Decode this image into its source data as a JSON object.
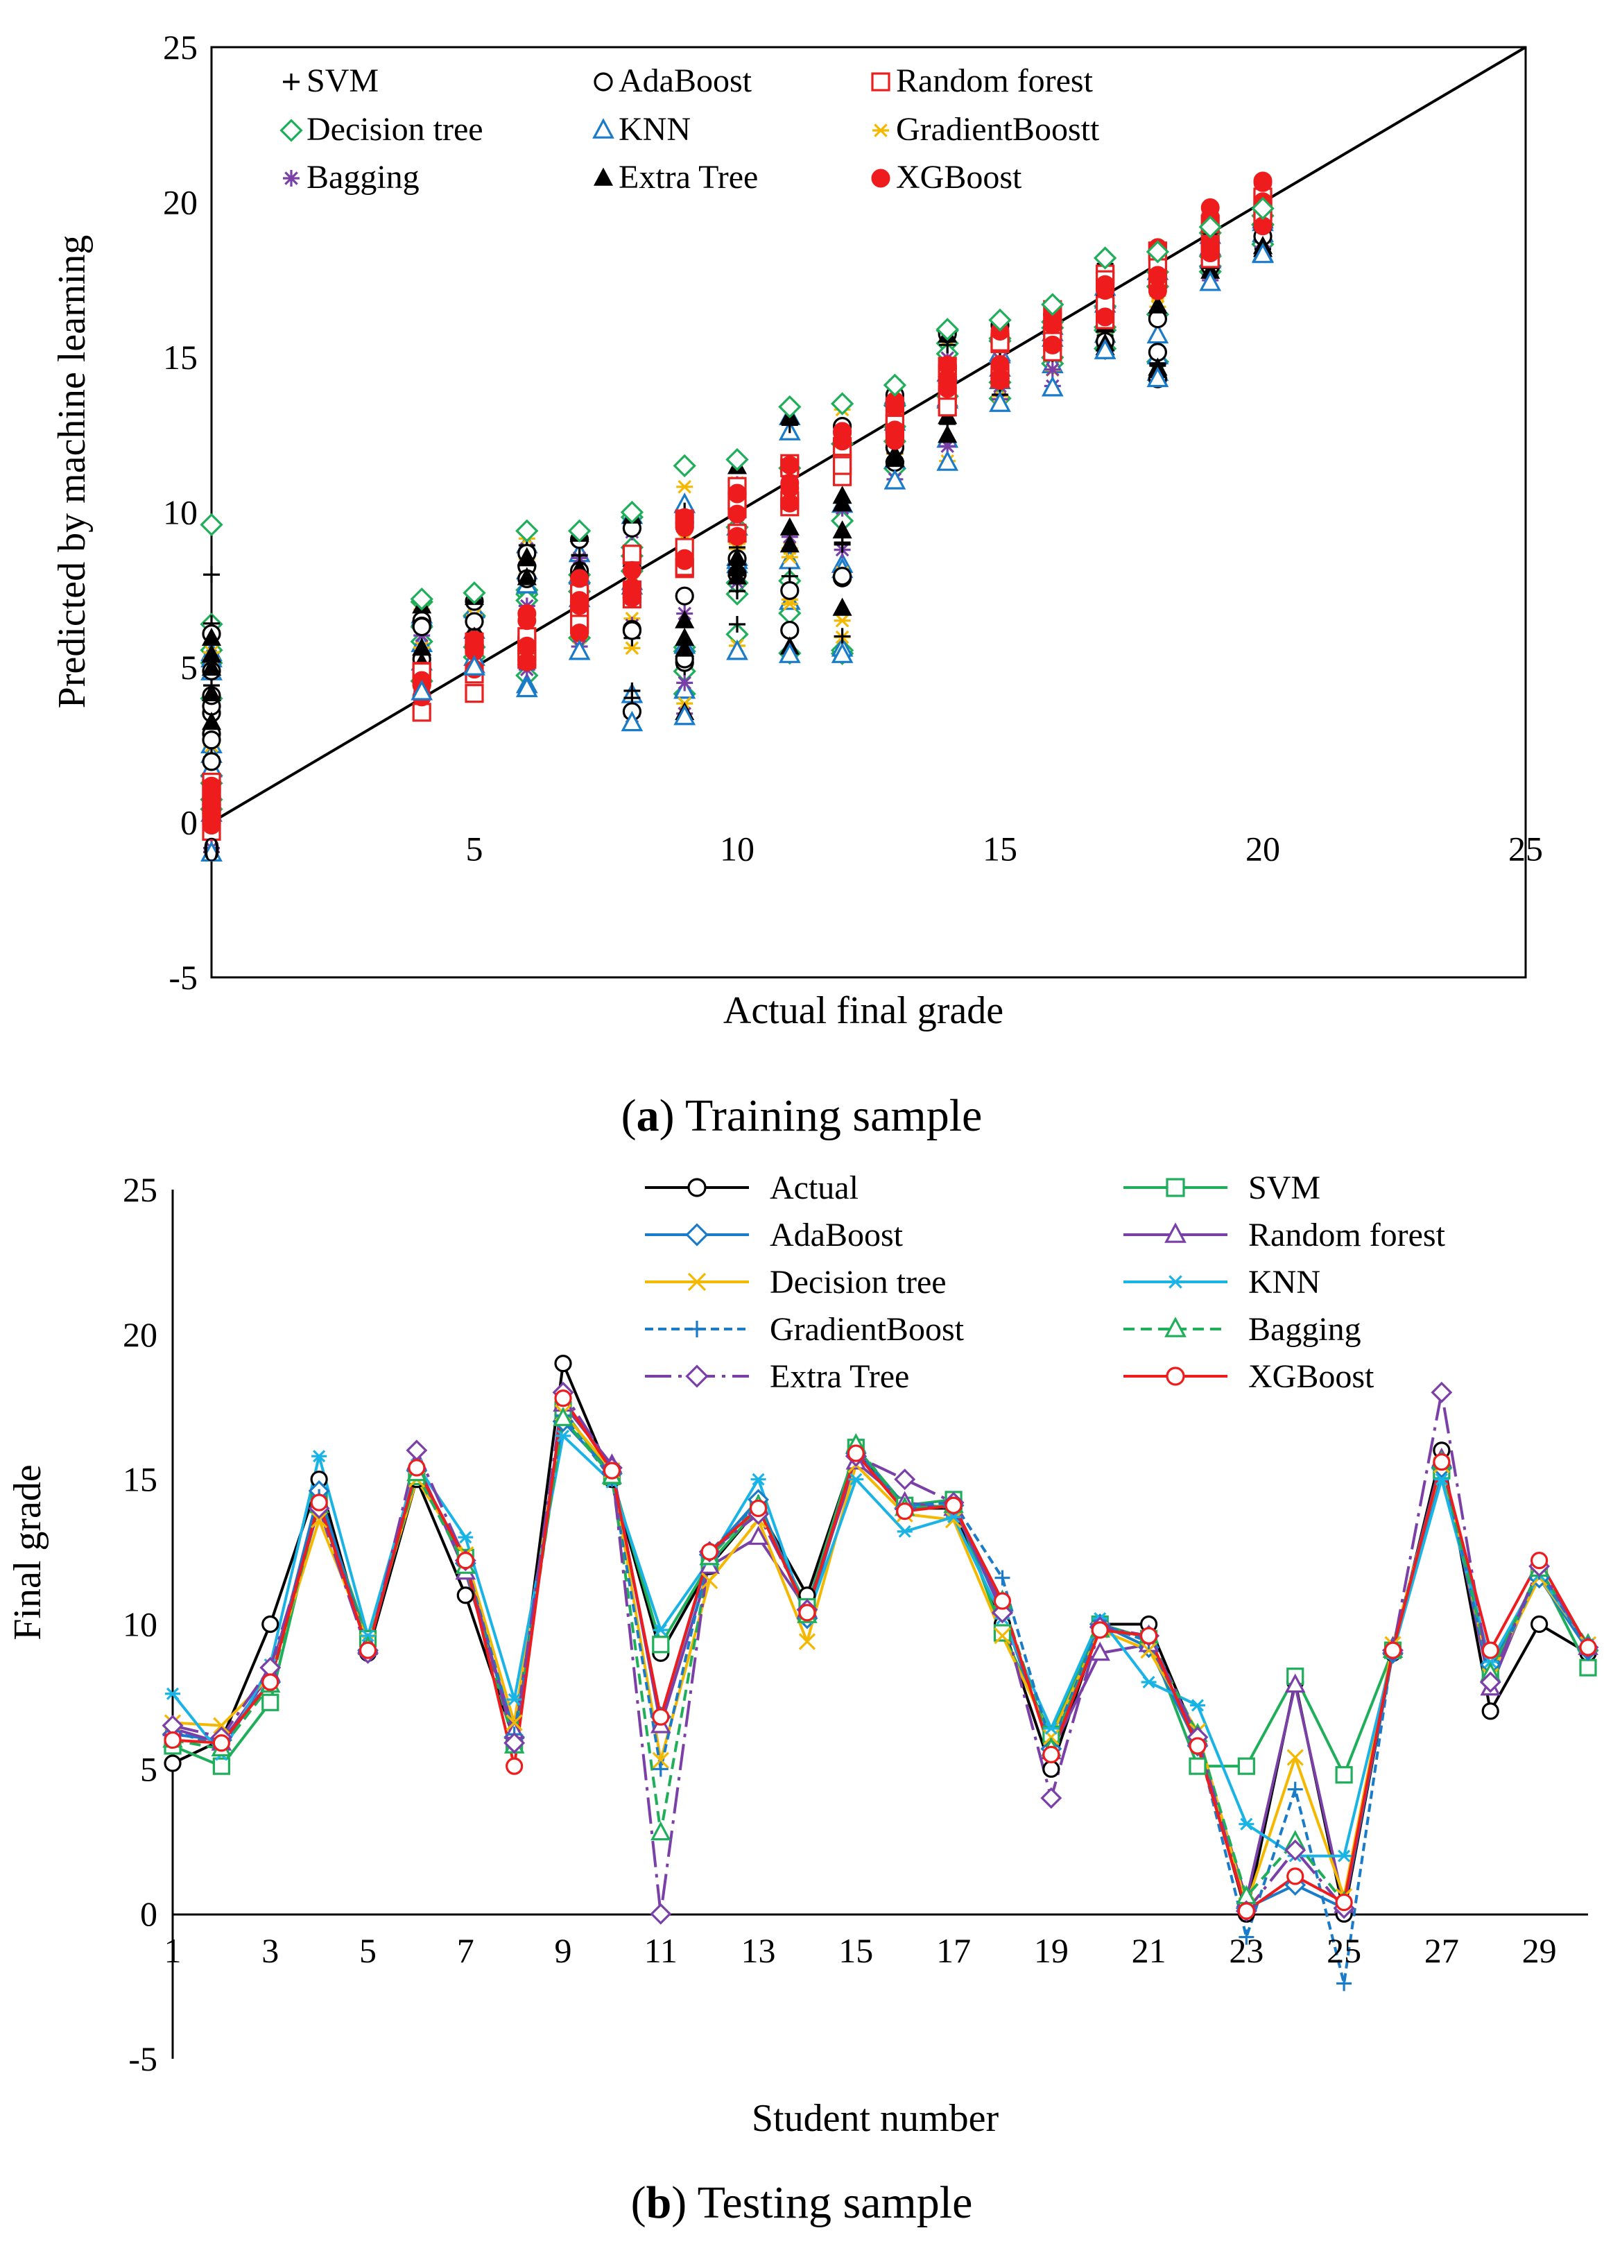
{
  "chart_data": [
    {
      "type": "scatter",
      "caption": {
        "letter": "a",
        "text": "Training sample"
      },
      "xlabel": "Actual final grade",
      "ylabel": "Predicted by machine learning",
      "xlim": [
        0,
        25
      ],
      "ylim": [
        -5,
        25
      ],
      "xticks": [
        "0",
        "5",
        "10",
        "15",
        "20",
        "25"
      ],
      "yticks": [
        "-5",
        "0",
        "5",
        "10",
        "15",
        "20",
        "25"
      ],
      "reference_line": {
        "from": [
          0,
          0
        ],
        "to": [
          25,
          25
        ]
      },
      "series": [
        {
          "name": "SVM",
          "marker": "plus",
          "color": "#000000"
        },
        {
          "name": "AdaBoost",
          "marker": "circle-open",
          "color": "#000000"
        },
        {
          "name": "Random forest",
          "marker": "square-open",
          "color": "#e8201f"
        },
        {
          "name": "Decision tree",
          "marker": "diamond-open",
          "color": "#1fae5a"
        },
        {
          "name": "KNN",
          "marker": "triangle-open",
          "color": "#1a7bc9"
        },
        {
          "name": "GradientBoostt",
          "marker": "asterisk",
          "color": "#f5b800"
        },
        {
          "name": "Bagging",
          "marker": "star",
          "color": "#7b3fa8"
        },
        {
          "name": "Extra Tree",
          "marker": "triangle-filled",
          "color": "#000000"
        },
        {
          "name": "XGBoost",
          "marker": "circle-filled",
          "color": "#ee1c1c"
        }
      ],
      "grade_groups": [
        {
          "x": 0,
          "ymin": -1,
          "ymax": 9.6
        },
        {
          "x": 4,
          "ymin": 4.2,
          "ymax": 7.2
        },
        {
          "x": 5,
          "ymin": 5,
          "ymax": 7.4
        },
        {
          "x": 6,
          "ymin": 4.3,
          "ymax": 9.4
        },
        {
          "x": 7,
          "ymin": 5.5,
          "ymax": 9.4
        },
        {
          "x": 8,
          "ymin": 3.2,
          "ymax": 10
        },
        {
          "x": 9,
          "ymin": 3.4,
          "ymax": 11.5
        },
        {
          "x": 10,
          "ymin": 5.5,
          "ymax": 11.7
        },
        {
          "x": 11,
          "ymin": 5.4,
          "ymax": 13.4
        },
        {
          "x": 12,
          "ymin": 5.4,
          "ymax": 13.5
        },
        {
          "x": 13,
          "ymin": 11,
          "ymax": 14.1
        },
        {
          "x": 14,
          "ymin": 11.6,
          "ymax": 15.9
        },
        {
          "x": 15,
          "ymin": 13.5,
          "ymax": 16.2
        },
        {
          "x": 16,
          "ymin": 14,
          "ymax": 16.7
        },
        {
          "x": 17,
          "ymin": 15.2,
          "ymax": 18.2
        },
        {
          "x": 18,
          "ymin": 14.3,
          "ymax": 18.4
        },
        {
          "x": 19,
          "ymin": 17.4,
          "ymax": 19.2
        },
        {
          "x": 20,
          "ymin": 18.3,
          "ymax": 19.8
        }
      ]
    },
    {
      "type": "line",
      "caption": {
        "letter": "b",
        "text": "Testing sample"
      },
      "xlabel": "Student number",
      "ylabel": "Final grade",
      "xlim": [
        1,
        30
      ],
      "ylim": [
        -5,
        25
      ],
      "xticks": [
        "1",
        "3",
        "5",
        "7",
        "9",
        "11",
        "13",
        "15",
        "17",
        "19",
        "21",
        "23",
        "25",
        "27",
        "29"
      ],
      "yticks": [
        "-5",
        "0",
        "5",
        "10",
        "15",
        "20",
        "25"
      ],
      "x": [
        1,
        2,
        3,
        4,
        5,
        6,
        7,
        8,
        9,
        10,
        11,
        12,
        13,
        14,
        15,
        16,
        17,
        18,
        19,
        20,
        21,
        22,
        23,
        24,
        25,
        26,
        27,
        28,
        29,
        30
      ],
      "series": [
        {
          "name": "Actual",
          "color": "#000000",
          "dash": "",
          "marker": "circle-open",
          "values": [
            5.2,
            6,
            10,
            15,
            9,
            15,
            11,
            6,
            19,
            15,
            9,
            12,
            14,
            11,
            16,
            14,
            14,
            10,
            5,
            10,
            10,
            6,
            0,
            8,
            0,
            9,
            16,
            7,
            10,
            9
          ]
        },
        {
          "name": "SVM",
          "color": "#1fae5a",
          "dash": "",
          "marker": "square-open",
          "values": [
            5.8,
            5.1,
            7.3,
            14.3,
            9.5,
            15.1,
            12.3,
            5.9,
            17.4,
            15.1,
            9.3,
            12.1,
            14.0,
            10.6,
            16.1,
            14.1,
            14.3,
            9.7,
            6.2,
            10.0,
            9.5,
            5.1,
            5.1,
            8.2,
            4.8,
            9.1,
            15.3,
            8.4,
            11.8,
            8.5
          ]
        },
        {
          "name": "AdaBoost",
          "color": "#1a7bc9",
          "dash": "",
          "marker": "diamond-open",
          "values": [
            6.2,
            6.0,
            8.0,
            14.6,
            9.1,
            15.3,
            12.1,
            6.1,
            17.0,
            15.2,
            6.8,
            12.4,
            14.3,
            10.2,
            15.9,
            14.0,
            14.1,
            10.4,
            5.7,
            10.0,
            9.2,
            5.8,
            0.2,
            1.0,
            0.2,
            9.0,
            15.4,
            8.6,
            11.6,
            9.1
          ]
        },
        {
          "name": "Random forest",
          "color": "#7b3fa8",
          "dash": "",
          "marker": "triangle-open",
          "values": [
            6.4,
            5.9,
            8.3,
            14.2,
            9.3,
            15.6,
            11.8,
            6.3,
            17.6,
            15.5,
            6.5,
            12.0,
            13.0,
            10.5,
            15.6,
            14.2,
            14.0,
            10.6,
            5.6,
            9.0,
            9.3,
            6.1,
            0.5,
            7.9,
            0.3,
            9.2,
            15.7,
            7.8,
            11.9,
            9.2
          ]
        },
        {
          "name": "Decision tree",
          "color": "#f5b800",
          "dash": "",
          "marker": "x",
          "values": [
            6.6,
            6.5,
            8.2,
            13.6,
            9.4,
            15.0,
            12.4,
            6.6,
            17.3,
            15.3,
            5.3,
            11.5,
            13.6,
            9.4,
            15.5,
            13.8,
            13.6,
            9.6,
            6.1,
            9.8,
            9.1,
            6.3,
            0.3,
            5.4,
            0.6,
            9.3,
            15.5,
            8.2,
            11.6,
            9.3
          ]
        },
        {
          "name": "KNN",
          "color": "#1ab3e6",
          "dash": "",
          "marker": "asterisk",
          "values": [
            7.6,
            5.5,
            8.6,
            15.8,
            9.6,
            15.5,
            13.0,
            7.4,
            16.5,
            14.9,
            9.8,
            12.2,
            15.0,
            10.2,
            15.0,
            13.2,
            13.7,
            10.2,
            6.4,
            10.2,
            8.0,
            7.2,
            3.1,
            2.0,
            2.0,
            9.0,
            15.0,
            8.7,
            11.7,
            9.3
          ]
        },
        {
          "name": "GradientBoost",
          "color": "#1a7bc9",
          "dash": "12 7",
          "marker": "plus",
          "values": [
            6.3,
            5.8,
            8.1,
            14.4,
            9.2,
            15.3,
            12.2,
            6.2,
            17.2,
            15.0,
            5.0,
            12.5,
            14.2,
            10.4,
            16.0,
            14.1,
            14.2,
            11.6,
            5.8,
            10.0,
            9.4,
            6.0,
            -0.8,
            4.3,
            -2.4,
            9.2,
            15.6,
            8.1,
            11.8,
            9.2
          ]
        },
        {
          "name": "Bagging",
          "color": "#1fae5a",
          "dash": "16 9",
          "marker": "triangle-open",
          "values": [
            6.0,
            5.7,
            7.9,
            14.1,
            9.2,
            15.2,
            12.0,
            5.8,
            17.1,
            15.1,
            2.8,
            12.3,
            14.1,
            10.3,
            16.2,
            14.0,
            14.1,
            10.8,
            5.7,
            9.8,
            9.6,
            6.2,
            0.6,
            2.5,
            0.4,
            9.1,
            15.6,
            8.3,
            11.9,
            9.3
          ]
        },
        {
          "name": "Extra Tree",
          "color": "#7b3fa8",
          "dash": "38 10 5 10",
          "marker": "diamond-open",
          "values": [
            6.5,
            6.1,
            8.5,
            14.0,
            9.0,
            16.0,
            12.2,
            5.9,
            18.0,
            15.4,
            0.0,
            12.5,
            13.8,
            10.5,
            15.8,
            15.0,
            14.2,
            10.4,
            4.0,
            9.9,
            9.6,
            6.1,
            0.1,
            2.2,
            0.2,
            9.1,
            18.0,
            8.0,
            12.0,
            9.2
          ]
        },
        {
          "name": "XGBoost",
          "color": "#ee1c1c",
          "dash": "",
          "marker": "circle-open",
          "values": [
            6.0,
            5.9,
            8.0,
            14.2,
            9.1,
            15.4,
            12.2,
            5.1,
            17.8,
            15.3,
            6.8,
            12.5,
            14.0,
            10.4,
            15.9,
            13.9,
            14.1,
            10.8,
            5.5,
            9.8,
            9.6,
            5.8,
            0.1,
            1.3,
            0.4,
            9.1,
            15.6,
            9.1,
            12.2,
            9.2
          ]
        }
      ]
    }
  ]
}
